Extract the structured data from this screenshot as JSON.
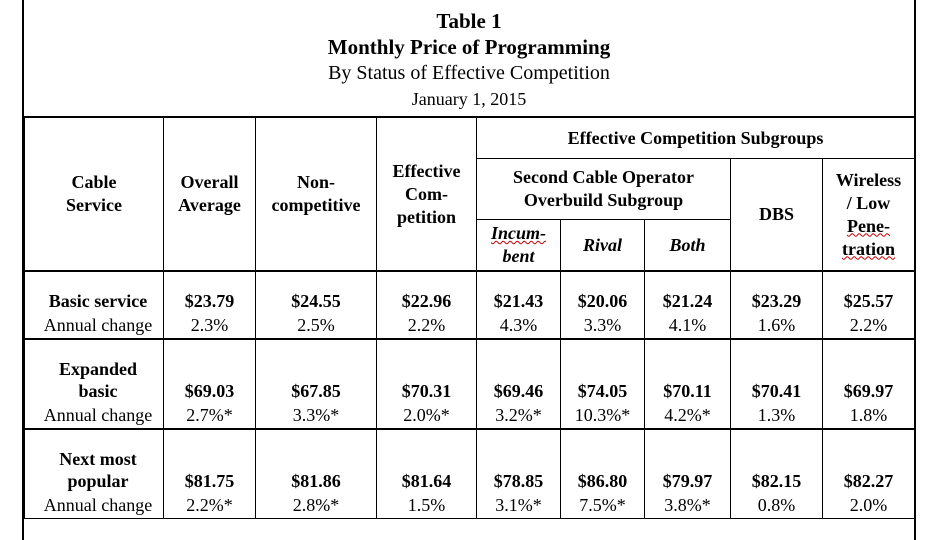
{
  "title": {
    "line1": "Table 1",
    "line2": "Monthly Price of Programming",
    "line3": "By Status of Effective Competition",
    "line4": "January 1, 2015"
  },
  "headers": {
    "cable_service": [
      "Cable",
      "Service"
    ],
    "overall_average": [
      "Overall",
      "Average"
    ],
    "non_competitive": [
      "Non-",
      "competitive"
    ],
    "effective_competition": [
      "Effective",
      "Com-",
      "petition"
    ],
    "subgroups": "Effective Competition Subgroups",
    "second_cable": [
      "Second Cable Operator",
      "Overbuild Subgroup"
    ],
    "incumbent": [
      "Incum-",
      "bent"
    ],
    "rival": "Rival",
    "both": "Both",
    "dbs": "DBS",
    "wireless": [
      "Wireless",
      "/ Low",
      "Pene-",
      "tration"
    ]
  },
  "rows": [
    {
      "label": [
        "Basic service"
      ],
      "sub": "Annual change",
      "values": [
        "$23.79",
        "$24.55",
        "$22.96",
        "$21.43",
        "$20.06",
        "$21.24",
        "$23.29",
        "$25.57"
      ],
      "changes": [
        "2.3%",
        "2.5%",
        "2.2%",
        "4.3%",
        "3.3%",
        "4.1%",
        "1.6%",
        "2.2%"
      ]
    },
    {
      "label": [
        "Expanded",
        "basic"
      ],
      "sub": "Annual change",
      "values": [
        "$69.03",
        "$67.85",
        "$70.31",
        "$69.46",
        "$74.05",
        "$70.11",
        "$70.41",
        "$69.97"
      ],
      "changes": [
        "2.7%*",
        "3.3%*",
        "2.0%*",
        "3.2%*",
        "10.3%*",
        "4.2%*",
        "1.3%",
        "1.8%"
      ]
    },
    {
      "label": [
        "Next most",
        "popular"
      ],
      "sub": "Annual change",
      "values": [
        "$81.75",
        "$81.86",
        "$81.64",
        "$78.85",
        "$86.80",
        "$79.97",
        "$82.15",
        "$82.27"
      ],
      "changes": [
        "2.2%*",
        "2.8%*",
        "1.5%",
        "3.1%*",
        "7.5%*",
        "3.8%*",
        "0.8%",
        "2.0%"
      ]
    }
  ]
}
